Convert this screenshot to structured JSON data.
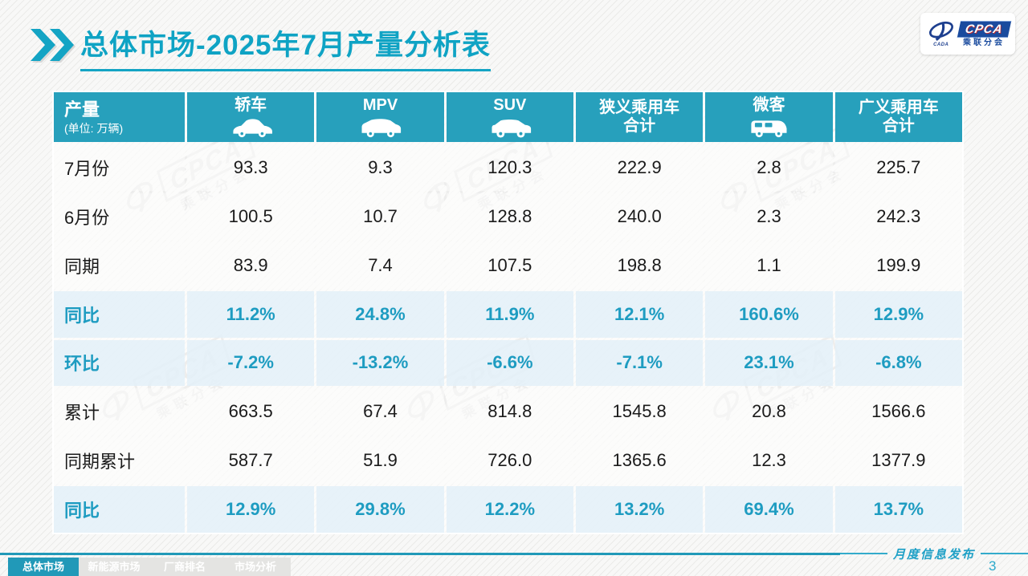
{
  "slide": {
    "title": "总体市场-2025年7月产量分析表",
    "footer_publish": "月度信息发布",
    "page_number": "3"
  },
  "logo": {
    "cpca": "CPCA",
    "sub": "乘联分会",
    "cada": "CADA"
  },
  "watermark": {
    "main": "CPCA",
    "sub": "乘联分会"
  },
  "colors": {
    "teal_header": "#27A0BC",
    "teal_accent": "#14A4C4",
    "percent_text": "#1E9CC1",
    "percent_row_bg": "#E3F0F8",
    "logo_blue": "#1A4B9E"
  },
  "table": {
    "corner": {
      "label": "产量",
      "unit": "(单位: 万辆)"
    },
    "columns": [
      {
        "label": "轿车",
        "icon": "sedan-icon"
      },
      {
        "label": "MPV",
        "icon": "mpv-icon"
      },
      {
        "label": "SUV",
        "icon": "suv-icon"
      },
      {
        "label": "狭义乘用车\n合计",
        "icon": null
      },
      {
        "label": "微客",
        "icon": "microvan-icon"
      },
      {
        "label": "广义乘用车\n合计",
        "icon": null
      }
    ],
    "rows": [
      {
        "label": "7月份",
        "type": "normal",
        "values": [
          "93.3",
          "9.3",
          "120.3",
          "222.9",
          "2.8",
          "225.7"
        ]
      },
      {
        "label": "6月份",
        "type": "normal",
        "values": [
          "100.5",
          "10.7",
          "128.8",
          "240.0",
          "2.3",
          "242.3"
        ]
      },
      {
        "label": "同期",
        "type": "normal",
        "values": [
          "83.9",
          "7.4",
          "107.5",
          "198.8",
          "1.1",
          "199.9"
        ]
      },
      {
        "label": "同比",
        "type": "percent",
        "values": [
          "11.2%",
          "24.8%",
          "11.9%",
          "12.1%",
          "160.6%",
          "12.9%"
        ]
      },
      {
        "label": "环比",
        "type": "percent",
        "values": [
          "-7.2%",
          "-13.2%",
          "-6.6%",
          "-7.1%",
          "23.1%",
          "-6.8%"
        ]
      },
      {
        "label": "累计",
        "type": "normal",
        "values": [
          "663.5",
          "67.4",
          "814.8",
          "1545.8",
          "20.8",
          "1566.6"
        ]
      },
      {
        "label": "同期累计",
        "type": "normal",
        "values": [
          "587.7",
          "51.9",
          "726.0",
          "1365.6",
          "12.3",
          "1377.9"
        ]
      },
      {
        "label": "同比",
        "type": "percent",
        "values": [
          "12.9%",
          "29.8%",
          "12.2%",
          "13.2%",
          "69.4%",
          "13.7%"
        ]
      }
    ]
  },
  "chart_data": {
    "type": "table",
    "title": "总体市场-2025年7月产量分析表",
    "unit": "万辆",
    "categories": [
      "轿车",
      "MPV",
      "SUV",
      "狭义乘用车合计",
      "微客",
      "广义乘用车合计"
    ],
    "series": [
      {
        "name": "7月份",
        "values": [
          93.3,
          9.3,
          120.3,
          222.9,
          2.8,
          225.7
        ]
      },
      {
        "name": "6月份",
        "values": [
          100.5,
          10.7,
          128.8,
          240.0,
          2.3,
          242.3
        ]
      },
      {
        "name": "同期",
        "values": [
          83.9,
          7.4,
          107.5,
          198.8,
          1.1,
          199.9
        ]
      },
      {
        "name": "同比",
        "values": [
          "11.2%",
          "24.8%",
          "11.9%",
          "12.1%",
          "160.6%",
          "12.9%"
        ]
      },
      {
        "name": "环比",
        "values": [
          "-7.2%",
          "-13.2%",
          "-6.6%",
          "-7.1%",
          "23.1%",
          "-6.8%"
        ]
      },
      {
        "name": "累计",
        "values": [
          663.5,
          67.4,
          814.8,
          1545.8,
          20.8,
          1566.6
        ]
      },
      {
        "name": "同期累计",
        "values": [
          587.7,
          51.9,
          726.0,
          1365.6,
          12.3,
          1377.9
        ]
      },
      {
        "name": "同比(累计)",
        "values": [
          "12.9%",
          "29.8%",
          "12.2%",
          "13.2%",
          "69.4%",
          "13.7%"
        ]
      }
    ]
  },
  "footer": {
    "tabs": [
      {
        "label": "总体市场",
        "active": true
      },
      {
        "label": "新能源市场",
        "active": false
      },
      {
        "label": "厂商排名",
        "active": false
      },
      {
        "label": "市场分析",
        "active": false
      }
    ]
  }
}
